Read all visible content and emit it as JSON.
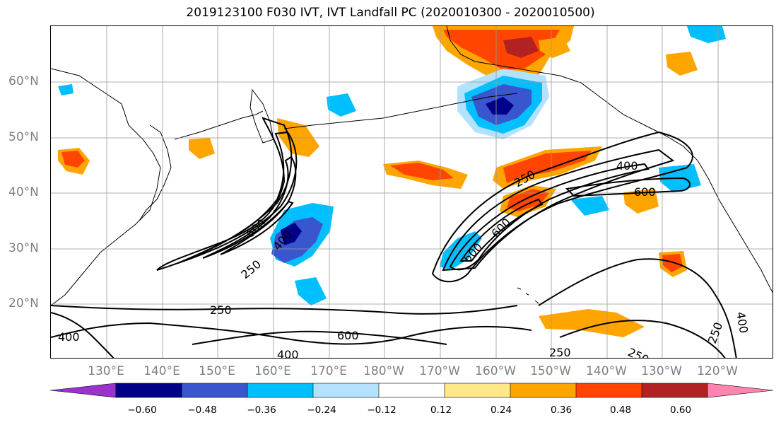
{
  "title": "2019123100 F030 IVT, IVT Landfall PC (2020010300 - 2020010500)",
  "lat_labels": [
    "60°N",
    "50°N",
    "40°N",
    "30°N",
    "20°N"
  ],
  "lon_labels": [
    "130°E",
    "140°E",
    "150°E",
    "160°E",
    "170°E",
    "180°W",
    "170°W",
    "160°W",
    "150°W",
    "140°W",
    "130°W",
    "120°W"
  ],
  "colorbar": {
    "ticks": [
      "−0.60",
      "−0.48",
      "−0.36",
      "−0.24",
      "−0.12",
      "0.12",
      "0.24",
      "0.36",
      "0.48",
      "0.60"
    ],
    "colors": [
      "#9a32cd",
      "#00008b",
      "#3a56cf",
      "#00bfff",
      "#b3e2ff",
      "#ffffff",
      "#ffe88a",
      "#ffa500",
      "#ff4500",
      "#b22222",
      "#ff85b0"
    ]
  },
  "contour_labels": [
    "600",
    "400",
    "250",
    "600",
    "250",
    "600",
    "600",
    "400",
    "400",
    "600",
    "250",
    "400",
    "250",
    "250",
    "600",
    "400",
    "250",
    "400",
    "400"
  ]
}
